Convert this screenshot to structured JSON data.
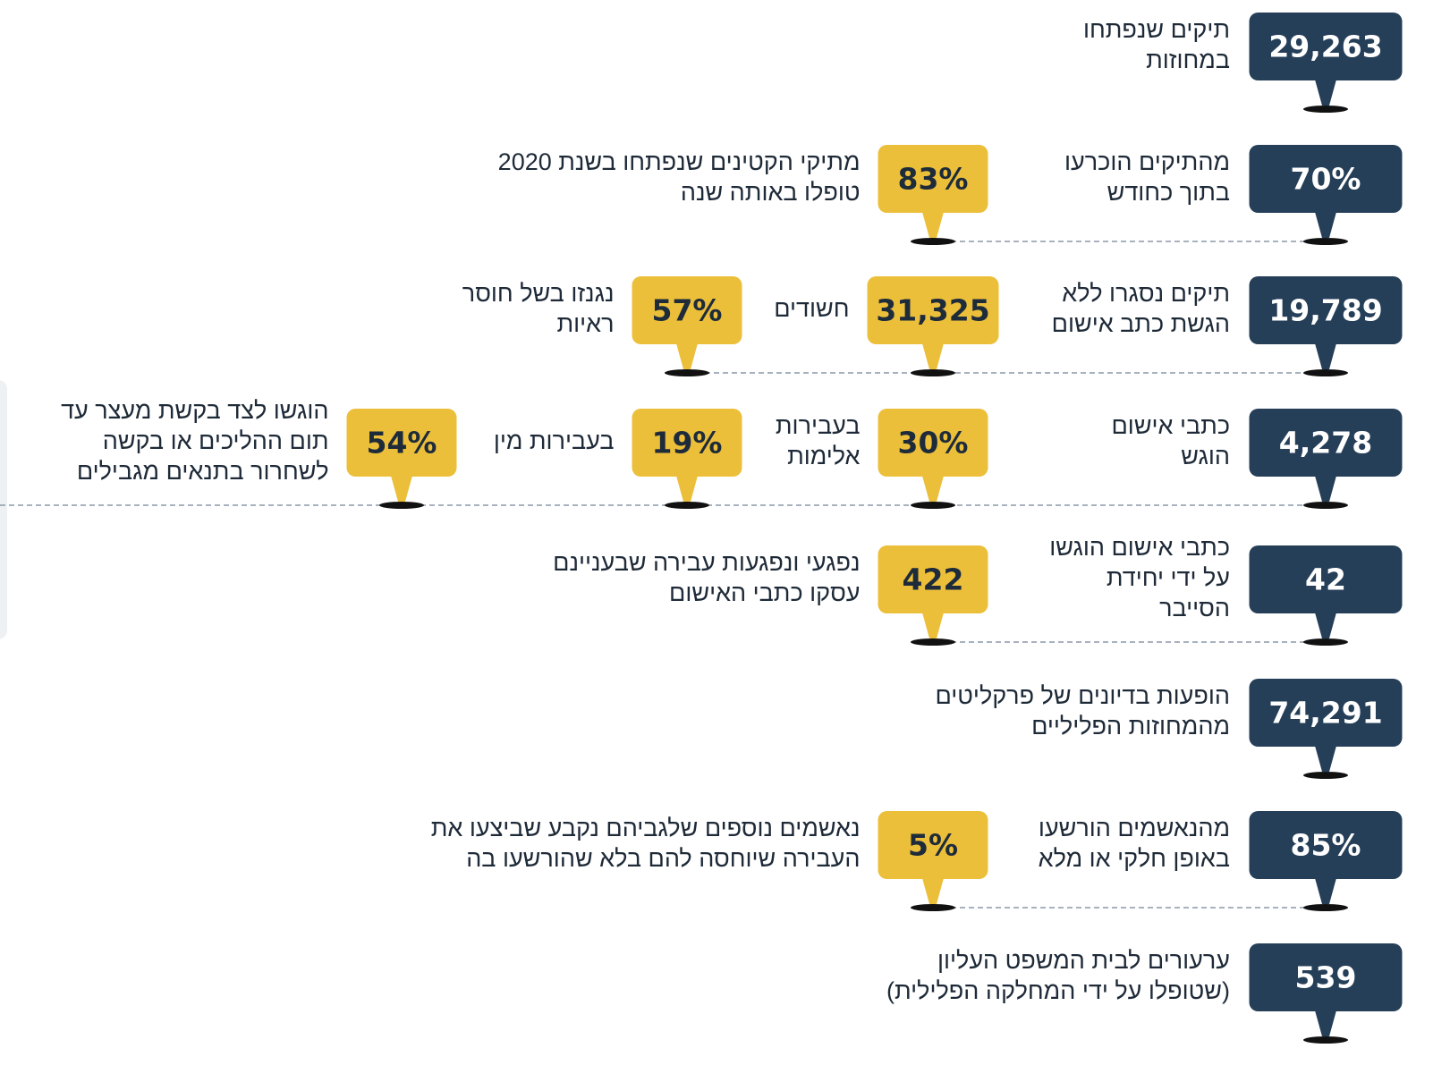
{
  "rows": [
    {
      "main": {
        "value": "29,263",
        "label": [
          "תיקים שנפתחו",
          "במחוזות"
        ]
      },
      "subs": []
    },
    {
      "main": {
        "value": "70%",
        "label": [
          "מהתיקים הוכרעו",
          "בתוך כחודש"
        ]
      },
      "subs": [
        {
          "value": "83%",
          "label": [
            "מתיקי הקטינים שנפתחו בשנת 2020",
            "טופלו באותה שנה"
          ]
        }
      ]
    },
    {
      "main": {
        "value": "19,789",
        "label": [
          "תיקים נסגרו ללא",
          "הגשת כתב אישום"
        ]
      },
      "subs": [
        {
          "value": "31,325",
          "label": [
            "חשודים"
          ]
        },
        {
          "value": "57%",
          "label": [
            "נגנזו בשל חוסר",
            "ראיות"
          ]
        }
      ]
    },
    {
      "main": {
        "value": "4,278",
        "label": [
          "כתבי אישום",
          "הוגש"
        ]
      },
      "subs": [
        {
          "value": "30%",
          "label": [
            "בעבירות",
            "אלימות"
          ]
        },
        {
          "value": "19%",
          "label": [
            "בעבירות מין"
          ]
        },
        {
          "value": "54%",
          "label": [
            "הוגשו לצד בקשת מעצר עד",
            "תום ההליכים או בקשה",
            "לשחרור בתנאים מגבילים"
          ]
        }
      ]
    },
    {
      "main": {
        "value": "42",
        "label": [
          "כתבי אישום הוגשו",
          "על ידי יחידת",
          "הסייבר"
        ]
      },
      "subs": [
        {
          "value": "422",
          "label": [
            "נפגעי ונפגעות עבירה שבעניינם",
            "עסקו כתבי האישום"
          ]
        }
      ]
    },
    {
      "main": {
        "value": "74,291",
        "label": [
          "הופעות בדיונים של פרקליטים",
          "מהמחוזות הפליליים"
        ]
      },
      "subs": []
    },
    {
      "main": {
        "value": "85%",
        "label": [
          "מהנאשמים הורשעו",
          "באופן חלקי או מלא"
        ]
      },
      "subs": [
        {
          "value": "5%",
          "label": [
            "נאשמים נוספים שלגביהם נקבע שביצעו את",
            "העבירה שיוחסה להם בלא שהורשעו בה"
          ]
        }
      ]
    },
    {
      "main": {
        "value": "539",
        "label": [
          "ערעורים לבית המשפט העליון",
          "(שטופלו על ידי המחלקה הפלילית)"
        ]
      },
      "subs": []
    }
  ]
}
